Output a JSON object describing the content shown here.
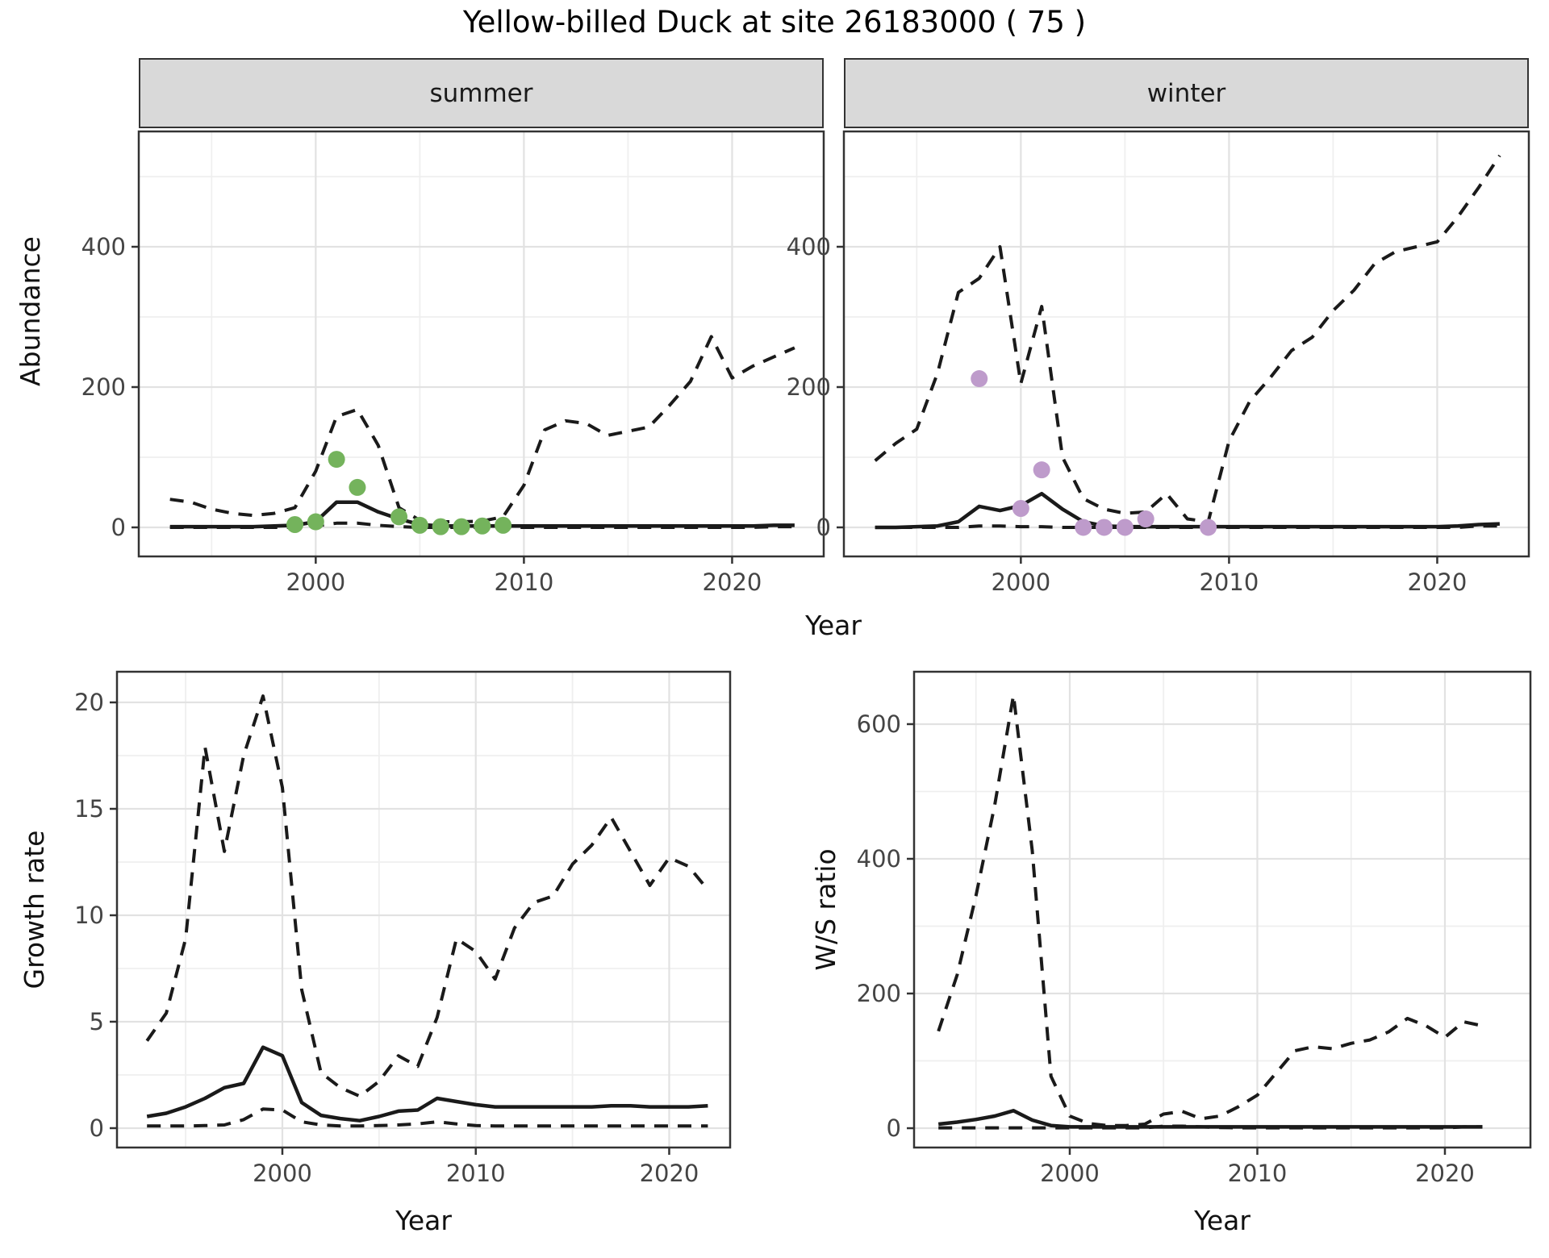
{
  "title": "Yellow-billed Duck at site 26183000 ( 75 )",
  "facets": {
    "summer": "summer",
    "winter": "winter"
  },
  "axis_titles": {
    "abundance": "Abundance",
    "year": "Year",
    "growth": "Growth rate",
    "ws": "W/S ratio"
  },
  "colors": {
    "line": "#1a1a1a",
    "summer_points": "#74B35C",
    "winter_points": "#BE9BCB",
    "strip_fill": "#d9d9d9",
    "panel_border": "#333333",
    "grid_major": "#e2e2e2",
    "grid_minor": "#efefef",
    "tick_text": "#444444"
  },
  "chart_data": [
    {
      "type": "line",
      "id": "abundance-summer",
      "facet_label": "summer",
      "xlabel": "Year",
      "ylabel": "Abundance",
      "x": [
        1993,
        1994,
        1995,
        1996,
        1997,
        1998,
        1999,
        2000,
        2001,
        2002,
        2003,
        2004,
        2005,
        2006,
        2007,
        2008,
        2009,
        2010,
        2011,
        2012,
        2013,
        2014,
        2015,
        2016,
        2017,
        2018,
        2019,
        2020,
        2021,
        2022,
        2023
      ],
      "xticks": {
        "values": [
          2000,
          2010,
          2020
        ],
        "labels": [
          "2000",
          "2010",
          "2020"
        ]
      },
      "yticks": {
        "values": [
          0,
          200,
          400
        ],
        "labels": [
          "0",
          "200",
          "400"
        ]
      },
      "xlim": [
        1991.5,
        2024.4
      ],
      "ylim": [
        -41.4,
        564.4
      ],
      "series": [
        {
          "name": "lower-ci",
          "style": "dashed",
          "values": [
            0,
            0,
            0,
            0,
            0,
            0,
            0,
            2,
            6,
            6,
            3,
            1,
            0,
            0,
            0,
            0,
            0,
            0,
            0,
            0,
            0,
            0,
            0,
            0,
            0,
            0,
            0,
            0,
            0,
            1,
            1
          ]
        },
        {
          "name": "upper-ci",
          "style": "dashed",
          "values": [
            40,
            36,
            26,
            20,
            17,
            20,
            28,
            80,
            158,
            168,
            117,
            28,
            10,
            8,
            8,
            9,
            15,
            60,
            139,
            152,
            148,
            131,
            137,
            143,
            174,
            208,
            272,
            213,
            230,
            243,
            256
          ]
        },
        {
          "name": "median-fit",
          "style": "solid",
          "values": [
            1,
            1,
            1,
            1,
            1,
            2,
            3,
            8,
            36,
            36,
            22,
            12,
            4,
            2,
            2,
            2,
            2,
            2,
            2,
            2,
            2,
            2,
            2,
            2,
            2,
            2,
            2,
            2,
            2,
            3,
            3
          ]
        }
      ],
      "points": {
        "name": "summer-observations",
        "color": "#74B35C",
        "data": [
          [
            1999,
            4
          ],
          [
            2000,
            8
          ],
          [
            2001,
            97
          ],
          [
            2002,
            57
          ],
          [
            2004,
            15
          ],
          [
            2005,
            3
          ],
          [
            2006,
            1
          ],
          [
            2007,
            1
          ],
          [
            2008,
            2
          ],
          [
            2009,
            3
          ]
        ]
      }
    },
    {
      "type": "line",
      "id": "abundance-winter",
      "facet_label": "winter",
      "xlabel": "Year",
      "ylabel": "Abundance",
      "x": [
        1993,
        1994,
        1995,
        1996,
        1997,
        1998,
        1999,
        2000,
        2001,
        2002,
        2003,
        2004,
        2005,
        2006,
        2007,
        2008,
        2009,
        2010,
        2011,
        2012,
        2013,
        2014,
        2015,
        2016,
        2017,
        2018,
        2019,
        2020,
        2021,
        2022,
        2023
      ],
      "xticks": {
        "values": [
          2000,
          2010,
          2020
        ],
        "labels": [
          "2000",
          "2010",
          "2020"
        ]
      },
      "yticks": {
        "values": [
          0,
          200,
          400
        ],
        "labels": [
          "0",
          "200",
          "400"
        ]
      },
      "xlim": [
        1991.5,
        2024.4
      ],
      "ylim": [
        -41.4,
        564.4
      ],
      "series": [
        {
          "name": "lower-ci",
          "style": "dashed",
          "values": [
            0,
            0,
            0,
            0,
            0,
            2,
            2,
            1,
            1,
            0,
            0,
            0,
            0,
            0,
            0,
            0,
            0,
            0,
            0,
            0,
            0,
            0,
            0,
            0,
            0,
            0,
            0,
            0,
            0,
            2,
            2
          ]
        },
        {
          "name": "upper-ci",
          "style": "dashed",
          "values": [
            95,
            120,
            140,
            220,
            335,
            355,
            400,
            205,
            315,
            100,
            41,
            26,
            20,
            22,
            48,
            12,
            8,
            123,
            180,
            214,
            252,
            271,
            309,
            338,
            376,
            393,
            400,
            407,
            443,
            485,
            530
          ]
        },
        {
          "name": "median-fit",
          "style": "solid",
          "values": [
            0,
            0,
            1,
            2,
            8,
            30,
            24,
            31,
            48,
            26,
            8,
            2,
            1,
            1,
            1,
            1,
            1,
            1,
            1,
            1,
            1,
            1,
            1,
            1,
            1,
            1,
            1,
            1,
            2,
            4,
            5
          ]
        }
      ],
      "points": {
        "name": "winter-observations",
        "color": "#BE9BCB",
        "data": [
          [
            1998,
            212
          ],
          [
            2000,
            27
          ],
          [
            2001,
            82
          ],
          [
            2003,
            0
          ],
          [
            2004,
            0
          ],
          [
            2005,
            0
          ],
          [
            2006,
            12
          ],
          [
            2009,
            0
          ]
        ]
      }
    },
    {
      "type": "line",
      "id": "growth-rate",
      "facet_label": "",
      "xlabel": "Year",
      "ylabel": "Growth rate",
      "x": [
        1993,
        1994,
        1995,
        1996,
        1997,
        1998,
        1999,
        2000,
        2001,
        2002,
        2003,
        2004,
        2005,
        2006,
        2007,
        2008,
        2009,
        2010,
        2011,
        2012,
        2013,
        2014,
        2015,
        2016,
        2017,
        2018,
        2019,
        2020,
        2021,
        2022
      ],
      "xticks": {
        "values": [
          2000,
          2010,
          2020
        ],
        "labels": [
          "2000",
          "2010",
          "2020"
        ]
      },
      "yticks": {
        "values": [
          0,
          5,
          10,
          15,
          20
        ],
        "labels": [
          "0",
          "5",
          "10",
          "15",
          "20"
        ]
      },
      "xlim": [
        1991.45,
        2023.15
      ],
      "ylim": [
        -0.91,
        21.44
      ],
      "series": [
        {
          "name": "lower-ci",
          "style": "dashed",
          "values": [
            0.1,
            0.1,
            0.1,
            0.12,
            0.15,
            0.4,
            0.9,
            0.85,
            0.3,
            0.15,
            0.1,
            0.1,
            0.12,
            0.15,
            0.2,
            0.3,
            0.2,
            0.12,
            0.1,
            0.1,
            0.1,
            0.1,
            0.1,
            0.1,
            0.1,
            0.1,
            0.1,
            0.1,
            0.1,
            0.1
          ]
        },
        {
          "name": "upper-ci",
          "style": "dashed",
          "values": [
            4.1,
            5.4,
            8.9,
            17.9,
            13.0,
            17.5,
            20.3,
            16.0,
            6.5,
            2.6,
            1.9,
            1.5,
            2.2,
            3.4,
            2.9,
            5.2,
            8.9,
            8.3,
            7.0,
            9.4,
            10.6,
            10.9,
            12.4,
            13.3,
            14.6,
            13.0,
            11.4,
            12.7,
            12.3,
            11.2
          ]
        },
        {
          "name": "median-fit",
          "style": "solid",
          "values": [
            0.55,
            0.7,
            1.0,
            1.4,
            1.9,
            2.1,
            3.8,
            3.4,
            1.2,
            0.6,
            0.45,
            0.35,
            0.55,
            0.8,
            0.85,
            1.4,
            1.25,
            1.1,
            1.0,
            1.0,
            1.0,
            1.0,
            1.0,
            1.0,
            1.05,
            1.05,
            1.0,
            1.0,
            1.0,
            1.05
          ]
        }
      ],
      "points": null
    },
    {
      "type": "line",
      "id": "ws-ratio",
      "facet_label": "",
      "xlabel": "Year",
      "ylabel": "W/S ratio",
      "x": [
        1993,
        1994,
        1995,
        1996,
        1997,
        1998,
        1999,
        2000,
        2001,
        2002,
        2003,
        2004,
        2005,
        2006,
        2007,
        2008,
        2009,
        2010,
        2011,
        2012,
        2013,
        2014,
        2015,
        2016,
        2017,
        2018,
        2019,
        2020,
        2021,
        2022
      ],
      "xticks": {
        "values": [
          2000,
          2010,
          2020
        ],
        "labels": [
          "2000",
          "2010",
          "2020"
        ]
      },
      "yticks": {
        "values": [
          0,
          200,
          400,
          600
        ],
        "labels": [
          "0",
          "200",
          "400",
          "600"
        ]
      },
      "xlim": [
        1991.7,
        2024.56
      ],
      "ylim": [
        -28.7,
        677.8
      ],
      "series": [
        {
          "name": "lower-ci",
          "style": "dashed",
          "values": [
            0.5,
            0.5,
            0.5,
            0.5,
            0.5,
            0.5,
            0.5,
            0.5,
            0.5,
            0.5,
            0.5,
            0.5,
            3,
            3,
            2,
            1,
            0.5,
            0.5,
            0.5,
            0.5,
            0.5,
            0.5,
            0.5,
            0.5,
            0.5,
            0.5,
            0.5,
            0.5,
            2,
            2
          ]
        },
        {
          "name": "upper-ci",
          "style": "dashed",
          "values": [
            144,
            228,
            345,
            480,
            643,
            412,
            77,
            18,
            7,
            4,
            4,
            6,
            21,
            25,
            14,
            18,
            32,
            49,
            82,
            115,
            121,
            118,
            126,
            131,
            143,
            163,
            152,
            135,
            158,
            152
          ]
        },
        {
          "name": "median-fit",
          "style": "solid",
          "values": [
            6,
            9,
            13,
            18,
            26,
            12,
            4,
            2,
            2,
            2,
            2,
            2,
            2,
            2,
            2,
            2,
            2,
            2,
            2,
            2,
            2,
            2,
            2,
            2,
            2,
            2,
            2,
            2,
            2,
            2
          ]
        }
      ],
      "points": null
    }
  ]
}
